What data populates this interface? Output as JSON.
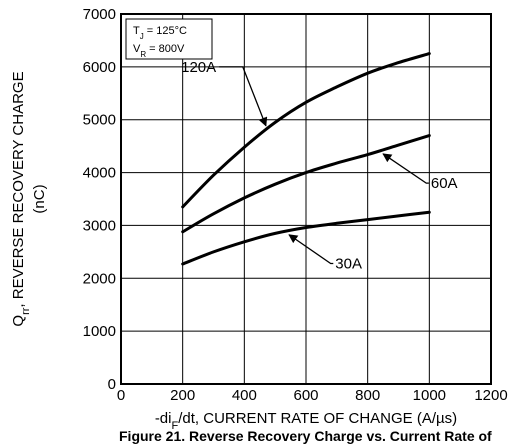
{
  "chart_data": {
    "type": "line",
    "xlabel": "-di_F/dt, CURRENT RATE OF CHANGE (A/µs)",
    "ylabel_line1": "Q_rr, REVERSE RECOVERY CHARGE",
    "ylabel_line2": "(nC)",
    "xlim": [
      0,
      1200
    ],
    "ylim": [
      0,
      7000
    ],
    "x_ticks": [
      0,
      200,
      400,
      600,
      800,
      1000,
      1200
    ],
    "y_ticks": [
      0,
      1000,
      2000,
      3000,
      4000,
      5000,
      6000,
      7000
    ],
    "grid": true,
    "conditions": [
      "T_J = 125°C",
      "V_R = 800V"
    ],
    "series": [
      {
        "name": "120A",
        "x": [
          200,
          300,
          400,
          500,
          600,
          700,
          800,
          900,
          1000
        ],
        "y": [
          3350,
          3950,
          4480,
          4950,
          5330,
          5620,
          5880,
          6080,
          6250
        ]
      },
      {
        "name": "60A",
        "x": [
          200,
          300,
          400,
          500,
          600,
          700,
          800,
          900,
          1000
        ],
        "y": [
          2880,
          3220,
          3520,
          3780,
          4000,
          4180,
          4340,
          4520,
          4700
        ]
      },
      {
        "name": "30A",
        "x": [
          200,
          300,
          400,
          500,
          600,
          700,
          800,
          900,
          1000
        ],
        "y": [
          2270,
          2500,
          2690,
          2850,
          2960,
          3040,
          3110,
          3180,
          3250
        ]
      }
    ],
    "caption": "Figure 21. Reverse Recovery Charge vs. Current Rate of"
  },
  "colors": {
    "line": "#000000",
    "grid": "#000000",
    "background": "#ffffff"
  }
}
